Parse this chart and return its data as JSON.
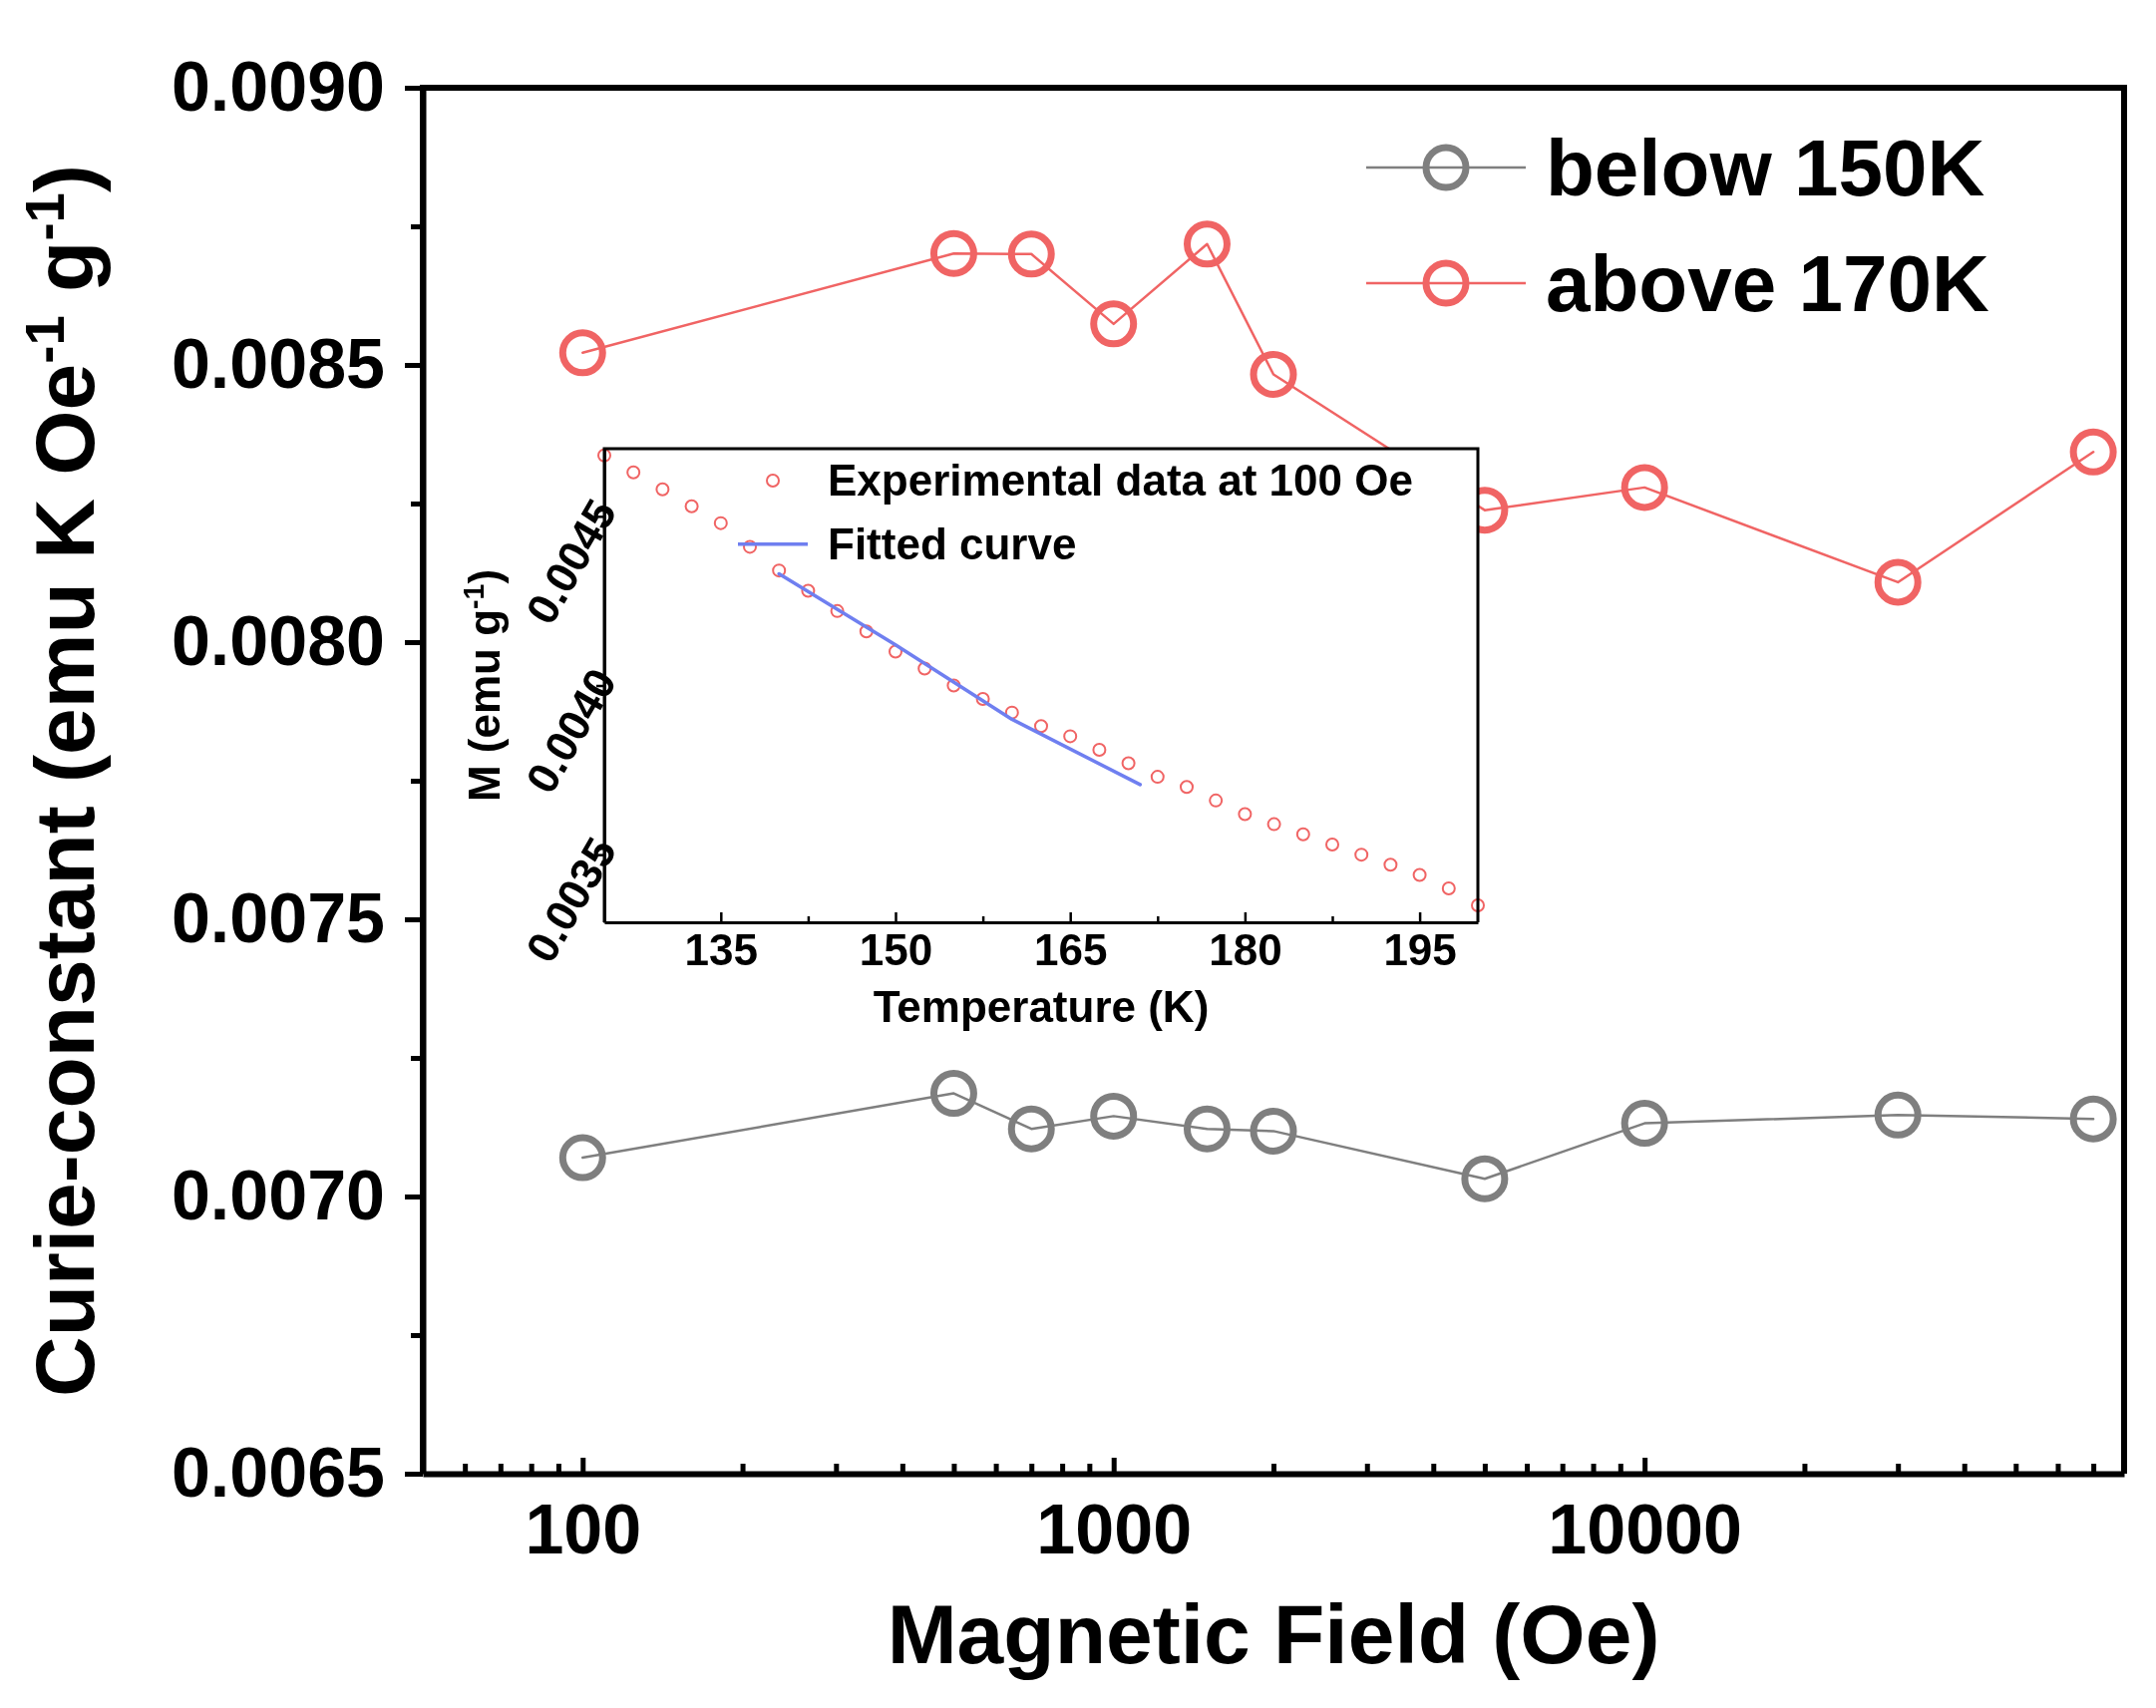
{
  "chart_data": [
    {
      "type": "line",
      "xlabel": "Magnetic Field (Oe)",
      "ylabel": "Curie-constant (emu K Oe$^{-1}$ g$^{-1}$)",
      "log": "x",
      "xlim": [
        50,
        80000
      ],
      "ylim": [
        0.0065,
        0.009
      ],
      "xticks": [
        {
          "value": 60,
          "label": null
        },
        {
          "value": 70,
          "label": null
        },
        {
          "value": 80,
          "label": null
        },
        {
          "value": 90,
          "label": null
        },
        100,
        {
          "value": 200,
          "label": null
        },
        {
          "value": 300,
          "label": null
        },
        {
          "value": 400,
          "label": null
        },
        {
          "value": 500,
          "label": null
        },
        {
          "value": 600,
          "label": null
        },
        {
          "value": 700,
          "label": null
        },
        {
          "value": 800,
          "label": null
        },
        {
          "value": 900,
          "label": null
        },
        1000,
        {
          "value": 2000,
          "label": null
        },
        {
          "value": 3000,
          "label": null
        },
        {
          "value": 4000,
          "label": null
        },
        {
          "value": 5000,
          "label": null
        },
        {
          "value": 6000,
          "label": null
        },
        {
          "value": 7000,
          "label": null
        },
        {
          "value": 8000,
          "label": null
        },
        {
          "value": 9000,
          "label": null
        },
        10000,
        {
          "value": 20000,
          "label": null
        },
        {
          "value": 30000,
          "label": null
        },
        {
          "value": 40000,
          "label": null
        },
        {
          "value": 50000,
          "label": null
        },
        {
          "value": 60000,
          "label": null
        },
        {
          "value": 70000,
          "label": null
        },
        {
          "value": 80000,
          "label": null
        }
      ],
      "yticks": [
        {
          "value": 0.0065,
          "label": "0.0065"
        },
        {
          "value": 0.00675,
          "label": null
        },
        {
          "value": 0.007,
          "label": "0.0070"
        },
        {
          "value": 0.00725,
          "label": null
        },
        {
          "value": 0.0075,
          "label": "0.0075"
        },
        {
          "value": 0.00775,
          "label": null
        },
        {
          "value": 0.008,
          "label": "0.0080"
        },
        {
          "value": 0.00825,
          "label": null
        },
        {
          "value": 0.0085,
          "label": "0.0085"
        },
        {
          "value": 0.00875,
          "label": null
        },
        {
          "value": 0.009,
          "label": "0.0090"
        }
      ],
      "x": [
        100,
        500,
        700,
        1000,
        1500,
        2000,
        5000,
        10000,
        30000,
        70000
      ],
      "series": [
        {
          "name": "below 150K",
          "color": "#7f7f7f",
          "marker": "circle",
          "values": [
            0.00707,
            0.007186,
            0.007122,
            0.007145,
            0.007122,
            0.007118,
            0.007032,
            0.007132,
            0.007147,
            0.00714
          ]
        },
        {
          "name": "above 170K",
          "color": "#f06464",
          "marker": "circle",
          "values": [
            0.008522,
            0.008701,
            0.0087,
            0.008574,
            0.008718,
            0.008483,
            0.008238,
            0.008279,
            0.008108,
            0.008343
          ]
        }
      ],
      "legend": "top right",
      "grid": false
    },
    {
      "type": "scatter",
      "xlabel": "Temperature (K)",
      "ylabel": "M (emu g$^{-1}$)",
      "xlim": [
        125,
        200
      ],
      "ylim": [
        0.0033,
        0.0047
      ],
      "xticks": [
        135,
        {
          "value": 142.5,
          "label": null
        },
        150,
        {
          "value": 157.5,
          "label": null
        },
        165,
        {
          "value": 172.5,
          "label": null
        },
        180,
        {
          "value": 187.5,
          "label": null
        },
        195
      ],
      "yticks": [
        {
          "value": 0.0035,
          "label": "0.0035"
        },
        {
          "value": 0.004,
          "label": "0.0040"
        },
        {
          "value": 0.0045,
          "label": "0.0045"
        }
      ],
      "series": [
        {
          "name": "Experimental data at 100 Oe",
          "color": "#f06464",
          "marker": "circle",
          "x": [
            125,
            127.5,
            130,
            132.5,
            135,
            137.5,
            140,
            142.5,
            145,
            147.5,
            150,
            152.5,
            155,
            157.5,
            160,
            162.5,
            165,
            167.5,
            170,
            172.5,
            175,
            177.5,
            180,
            182.5,
            185,
            187.5,
            190,
            192.5,
            195,
            197.5,
            200
          ],
          "values": [
            0.00468,
            0.00463,
            0.00458,
            0.00453,
            0.00448,
            0.00441,
            0.00434,
            0.00428,
            0.00422,
            0.00416,
            0.0041,
            0.00405,
            0.004,
            0.00396,
            0.00392,
            0.00388,
            0.00385,
            0.00381,
            0.00377,
            0.00373,
            0.0037,
            0.00366,
            0.00362,
            0.00359,
            0.00356,
            0.00353,
            0.0035,
            0.00347,
            0.00344,
            0.0034,
            0.00335
          ]
        },
        {
          "name": "Fitted curve",
          "type": "line",
          "color": "#6f7ff0",
          "marker": "none",
          "x": [
            140,
            150,
            160,
            171
          ],
          "values": [
            0.00433,
            0.00412,
            0.0039,
            0.003707
          ]
        }
      ],
      "legend": "top right",
      "grid": false
    }
  ]
}
